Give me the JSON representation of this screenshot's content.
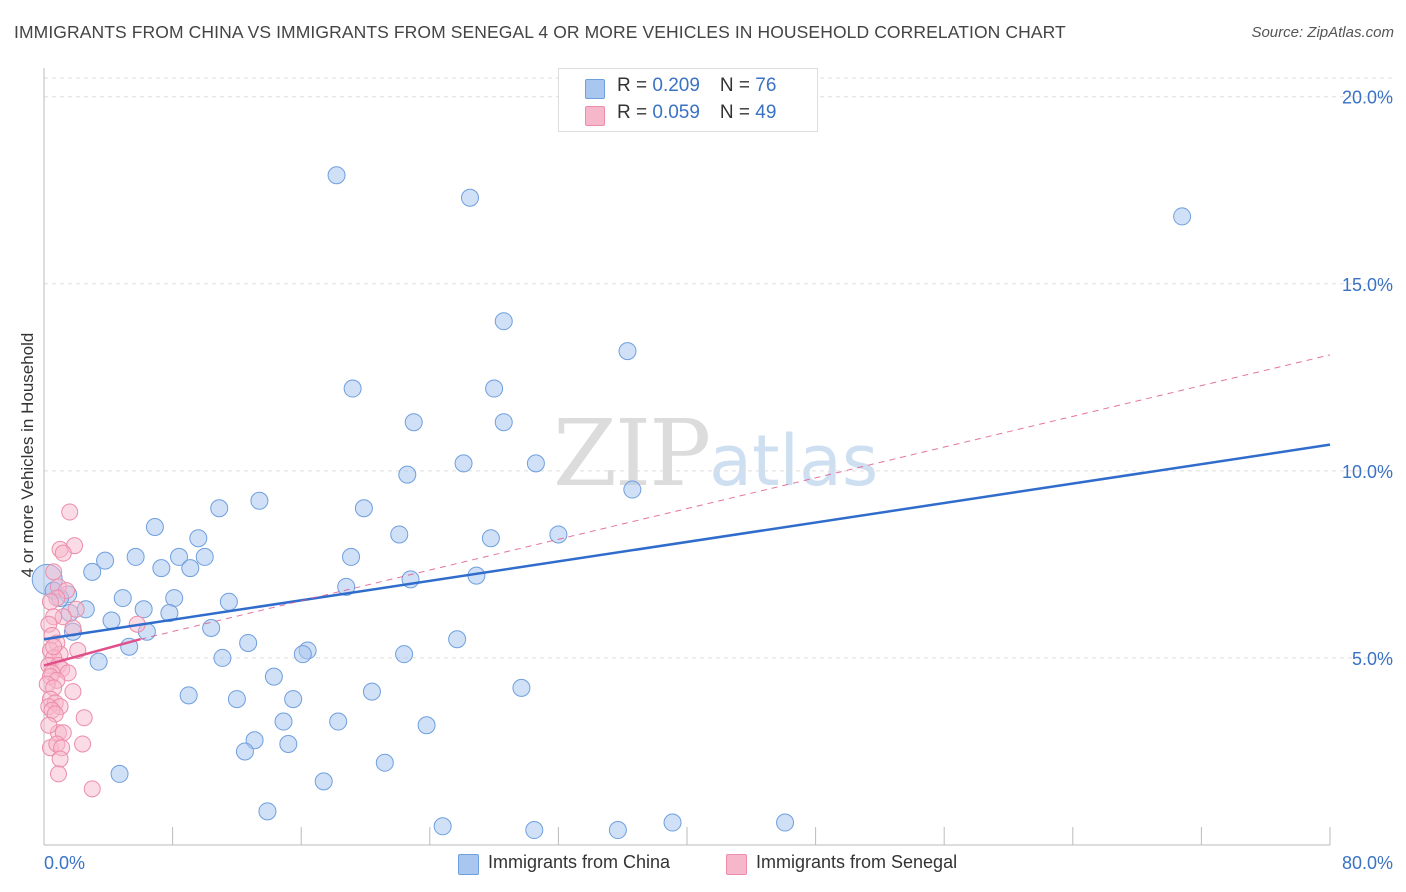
{
  "header": {
    "title": "IMMIGRANTS FROM CHINA VS IMMIGRANTS FROM SENEGAL 4 OR MORE VEHICLES IN HOUSEHOLD CORRELATION CHART",
    "source": "Source: ZipAtlas.com"
  },
  "legend": {
    "rows": [
      {
        "r_label": "R = ",
        "r_value": "0.209",
        "n_label": "N = ",
        "n_value": "76"
      },
      {
        "r_label": "R = ",
        "r_value": "0.059",
        "n_label": "N = ",
        "n_value": "49"
      }
    ],
    "bottom": [
      "Immigrants from China",
      "Immigrants from Senegal"
    ]
  },
  "watermark": {
    "zip": "ZIP",
    "atlas": "atlas"
  },
  "colors": {
    "china_fill": "#a9c6ee",
    "china_stroke": "#6f9fde",
    "china_line": "#2f6ccc",
    "senegal_fill": "#f7b7cb",
    "senegal_stroke": "#ec8dab",
    "senegal_line": "#e0508a",
    "grid": "#dddddd",
    "tick_text": "#3a72c4"
  },
  "chart_data": {
    "type": "scatter",
    "title": "IMMIGRANTS FROM CHINA VS IMMIGRANTS FROM SENEGAL 4 OR MORE VEHICLES IN HOUSEHOLD CORRELATION CHART",
    "xlabel": "",
    "ylabel": "4 or more Vehicles in Household",
    "xlim": [
      0,
      80
    ],
    "ylim": [
      0,
      20.5
    ],
    "x_tick_labels": [
      "0.0%",
      "80.0%"
    ],
    "y_ticks": [
      5,
      10,
      15,
      20
    ],
    "y_tick_labels": [
      "5.0%",
      "10.0%",
      "15.0%",
      "20.0%"
    ],
    "x_minor_ticks": [
      0,
      8,
      16,
      24,
      32,
      40,
      48,
      56,
      64,
      72,
      80
    ],
    "series": [
      {
        "name": "Immigrants from China",
        "R": 0.209,
        "N": 76,
        "trend": {
          "x": [
            0,
            80
          ],
          "y": [
            5.5,
            10.7
          ],
          "style": "solid"
        },
        "points": [
          [
            18.2,
            17.9
          ],
          [
            26.5,
            17.3
          ],
          [
            70.8,
            16.8
          ],
          [
            28.6,
            14.0
          ],
          [
            36.3,
            13.2
          ],
          [
            19.2,
            12.2
          ],
          [
            28.0,
            12.2
          ],
          [
            23.0,
            11.3
          ],
          [
            28.6,
            11.3
          ],
          [
            22.6,
            9.9
          ],
          [
            26.1,
            10.2
          ],
          [
            30.6,
            10.2
          ],
          [
            36.6,
            9.5
          ],
          [
            13.4,
            9.2
          ],
          [
            10.9,
            9.0
          ],
          [
            19.9,
            9.0
          ],
          [
            6.9,
            8.5
          ],
          [
            9.6,
            8.2
          ],
          [
            22.1,
            8.3
          ],
          [
            27.8,
            8.2
          ],
          [
            32.0,
            8.3
          ],
          [
            5.7,
            7.7
          ],
          [
            8.4,
            7.7
          ],
          [
            10.0,
            7.7
          ],
          [
            19.1,
            7.7
          ],
          [
            3.8,
            7.6
          ],
          [
            7.3,
            7.4
          ],
          [
            9.1,
            7.4
          ],
          [
            3.0,
            7.3
          ],
          [
            0.2,
            7.1
          ],
          [
            26.9,
            7.2
          ],
          [
            22.8,
            7.1
          ],
          [
            18.8,
            6.9
          ],
          [
            0.6,
            6.8
          ],
          [
            1.5,
            6.7
          ],
          [
            1.0,
            6.6
          ],
          [
            4.9,
            6.6
          ],
          [
            8.1,
            6.6
          ],
          [
            11.5,
            6.5
          ],
          [
            2.6,
            6.3
          ],
          [
            6.2,
            6.3
          ],
          [
            1.6,
            6.2
          ],
          [
            7.8,
            6.2
          ],
          [
            4.2,
            6.0
          ],
          [
            1.8,
            5.7
          ],
          [
            6.4,
            5.7
          ],
          [
            10.4,
            5.8
          ],
          [
            5.3,
            5.3
          ],
          [
            12.7,
            5.4
          ],
          [
            25.7,
            5.5
          ],
          [
            16.4,
            5.2
          ],
          [
            16.1,
            5.1
          ],
          [
            22.4,
            5.1
          ],
          [
            11.1,
            5.0
          ],
          [
            3.4,
            4.9
          ],
          [
            14.3,
            4.5
          ],
          [
            9.0,
            4.0
          ],
          [
            12.0,
            3.9
          ],
          [
            15.5,
            3.9
          ],
          [
            20.4,
            4.1
          ],
          [
            29.7,
            4.2
          ],
          [
            18.3,
            3.3
          ],
          [
            14.9,
            3.3
          ],
          [
            23.8,
            3.2
          ],
          [
            13.1,
            2.8
          ],
          [
            15.2,
            2.7
          ],
          [
            12.5,
            2.5
          ],
          [
            21.2,
            2.2
          ],
          [
            4.7,
            1.9
          ],
          [
            17.4,
            1.7
          ],
          [
            13.9,
            0.9
          ],
          [
            24.8,
            0.5
          ],
          [
            30.5,
            0.4
          ],
          [
            35.7,
            0.4
          ],
          [
            39.1,
            0.6
          ],
          [
            46.1,
            0.6
          ]
        ]
      },
      {
        "name": "Immigrants from Senegal",
        "R": 0.059,
        "N": 49,
        "trend": {
          "x": [
            0,
            6
          ],
          "y": [
            4.8,
            5.5
          ],
          "style": "solid",
          "extended": {
            "x": [
              6,
              80
            ],
            "y": [
              5.5,
              13.1
            ],
            "style": "dashed"
          }
        },
        "points": [
          [
            1.6,
            8.9
          ],
          [
            1.0,
            7.9
          ],
          [
            1.9,
            8.0
          ],
          [
            1.2,
            7.8
          ],
          [
            0.6,
            7.3
          ],
          [
            0.9,
            6.9
          ],
          [
            1.4,
            6.8
          ],
          [
            0.8,
            6.6
          ],
          [
            0.4,
            6.5
          ],
          [
            2.0,
            6.3
          ],
          [
            1.2,
            6.1
          ],
          [
            0.6,
            6.1
          ],
          [
            0.3,
            5.9
          ],
          [
            1.8,
            5.8
          ],
          [
            0.5,
            5.6
          ],
          [
            0.8,
            5.4
          ],
          [
            0.4,
            5.2
          ],
          [
            1.0,
            5.1
          ],
          [
            2.1,
            5.2
          ],
          [
            0.6,
            5.0
          ],
          [
            5.8,
            5.9
          ],
          [
            0.3,
            4.8
          ],
          [
            0.9,
            4.8
          ],
          [
            1.1,
            4.7
          ],
          [
            0.5,
            4.6
          ],
          [
            1.5,
            4.6
          ],
          [
            0.4,
            4.5
          ],
          [
            0.8,
            4.4
          ],
          [
            0.2,
            4.3
          ],
          [
            0.6,
            4.2
          ],
          [
            1.8,
            4.1
          ],
          [
            0.4,
            3.9
          ],
          [
            0.7,
            3.8
          ],
          [
            0.3,
            3.7
          ],
          [
            1.0,
            3.7
          ],
          [
            0.5,
            3.6
          ],
          [
            0.7,
            3.5
          ],
          [
            2.5,
            3.4
          ],
          [
            0.9,
            3.0
          ],
          [
            1.2,
            3.0
          ],
          [
            0.4,
            2.6
          ],
          [
            0.8,
            2.7
          ],
          [
            1.1,
            2.6
          ],
          [
            2.4,
            2.7
          ],
          [
            1.0,
            2.3
          ],
          [
            0.9,
            1.9
          ],
          [
            3.0,
            1.5
          ],
          [
            0.3,
            3.2
          ],
          [
            0.6,
            5.3
          ]
        ]
      }
    ]
  }
}
